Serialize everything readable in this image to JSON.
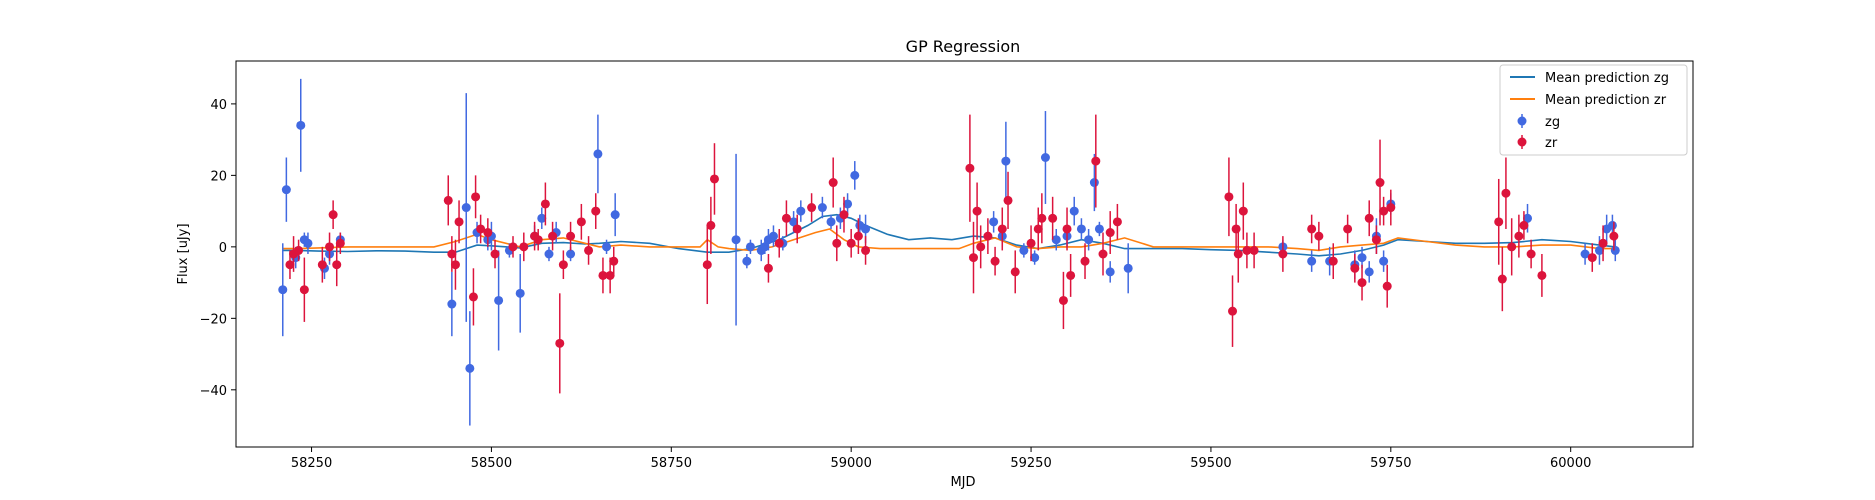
{
  "chart_data": {
    "type": "scatter",
    "title": "GP Regression",
    "xlabel": "MJD",
    "ylabel": "Flux [uJy]",
    "xlim": [
      58145,
      60170
    ],
    "ylim": [
      -56,
      52
    ],
    "xticks": [
      58250,
      58500,
      58750,
      59000,
      59250,
      59500,
      59750,
      60000
    ],
    "yticks": [
      -40,
      -20,
      0,
      20,
      40
    ],
    "legend_position": "top-right",
    "colors": {
      "mean_zg": "#1f77b4",
      "mean_zr": "#ff7f0e",
      "points_zg": "#4169e1",
      "points_zr": "#dc143c"
    },
    "lines": [
      {
        "name": "Mean prediction zg",
        "color": "#1f77b4",
        "x": [
          58210,
          58230,
          58260,
          58300,
          58340,
          58380,
          58420,
          58450,
          58480,
          58500,
          58540,
          58570,
          58600,
          58630,
          58650,
          58680,
          58720,
          58760,
          58800,
          58830,
          58860,
          58900,
          58940,
          58960,
          58980,
          59000,
          59020,
          59050,
          59080,
          59110,
          59140,
          59170,
          59200,
          59230,
          59260,
          59290,
          59320,
          59350,
          59380,
          59420,
          59460,
          59500,
          59540,
          59580,
          59620,
          59650,
          59680,
          59710,
          59740,
          59760,
          59800,
          59840,
          59880,
          59920,
          59960,
          60000,
          60040,
          60062
        ],
        "y": [
          -1,
          -1,
          -1.2,
          -1.3,
          -1.1,
          -1.2,
          -1.5,
          -1.5,
          0.5,
          0.3,
          -0.3,
          1.0,
          1.2,
          0.8,
          1.0,
          1.5,
          1.0,
          -0.5,
          -1.5,
          -1.5,
          -0.5,
          2.0,
          6.0,
          8.5,
          9.0,
          8.0,
          6.0,
          3.5,
          2.0,
          2.5,
          2.0,
          3.0,
          2.5,
          0.5,
          -0.5,
          0.5,
          2.0,
          1.0,
          -0.5,
          -0.5,
          -0.5,
          -0.8,
          -1.0,
          -1.5,
          -2.0,
          -2.5,
          -2.0,
          -1.0,
          0.5,
          2.0,
          1.5,
          1.0,
          1.0,
          1.2,
          2.0,
          1.5,
          0.5,
          0
        ]
      },
      {
        "name": "Mean prediction zr",
        "color": "#ff7f0e",
        "x": [
          58210,
          58230,
          58260,
          58300,
          58340,
          58380,
          58420,
          58450,
          58480,
          58500,
          58540,
          58570,
          58600,
          58630,
          58650,
          58680,
          58720,
          58760,
          58790,
          58800,
          58815,
          58830,
          58860,
          58890,
          58920,
          58950,
          58970,
          58990,
          59010,
          59040,
          59080,
          59110,
          59150,
          59170,
          59200,
          59230,
          59260,
          59290,
          59320,
          59350,
          59380,
          59420,
          59460,
          59500,
          59540,
          59580,
          59620,
          59650,
          59680,
          59710,
          59740,
          59760,
          59800,
          59840,
          59880,
          59920,
          59960,
          60000,
          60040,
          60062
        ],
        "y": [
          -0.5,
          -0.5,
          -0.3,
          0,
          0,
          0,
          0,
          1.5,
          3.5,
          2.0,
          0,
          2.0,
          2.5,
          1.0,
          0,
          0.5,
          0,
          0,
          0,
          2.0,
          0,
          -0.5,
          -1.0,
          0,
          2.0,
          4.0,
          5.0,
          2.0,
          0,
          -0.5,
          -0.5,
          -0.5,
          -0.5,
          1.0,
          2.5,
          0,
          -0.5,
          0,
          0,
          1.0,
          2.5,
          0,
          0,
          0,
          0,
          0,
          -0.5,
          -1.0,
          0,
          0.5,
          1.0,
          2.5,
          1.5,
          0.5,
          0,
          0,
          0.5,
          0.5,
          -0.5,
          -0.5
        ]
      }
    ],
    "series": [
      {
        "name": "zg",
        "color": "#4169e1",
        "points": [
          [
            58210,
            -12,
            13
          ],
          [
            58215,
            16,
            9
          ],
          [
            58228,
            -3,
            3
          ],
          [
            58235,
            34,
            13
          ],
          [
            58240,
            2,
            2
          ],
          [
            58245,
            1,
            3
          ],
          [
            58268,
            -6,
            3
          ],
          [
            58275,
            -2,
            3
          ],
          [
            58290,
            2,
            2
          ],
          [
            58445,
            -16,
            9
          ],
          [
            58465,
            11,
            32
          ],
          [
            58470,
            -34,
            16
          ],
          [
            58480,
            4,
            3
          ],
          [
            58495,
            2,
            3
          ],
          [
            58500,
            3,
            4
          ],
          [
            58510,
            -15,
            14
          ],
          [
            58525,
            -1,
            2
          ],
          [
            58540,
            -13,
            11
          ],
          [
            58560,
            3,
            3
          ],
          [
            58570,
            8,
            3
          ],
          [
            58580,
            -2,
            2
          ],
          [
            58590,
            4,
            3
          ],
          [
            58610,
            -2,
            2
          ],
          [
            58648,
            26,
            11
          ],
          [
            58660,
            0,
            2
          ],
          [
            58672,
            9,
            6
          ],
          [
            58840,
            2,
            24
          ],
          [
            58855,
            -4,
            2
          ],
          [
            58860,
            0,
            2
          ],
          [
            58875,
            -1,
            3
          ],
          [
            58880,
            0,
            2
          ],
          [
            58885,
            2,
            3
          ],
          [
            58892,
            3,
            3
          ],
          [
            58905,
            1,
            2
          ],
          [
            58920,
            7,
            3
          ],
          [
            58930,
            10,
            3
          ],
          [
            58960,
            11,
            3
          ],
          [
            58972,
            7,
            2
          ],
          [
            58985,
            8,
            3
          ],
          [
            58995,
            12,
            3
          ],
          [
            59005,
            20,
            4
          ],
          [
            59012,
            6,
            3
          ],
          [
            59020,
            5,
            4
          ],
          [
            59198,
            7,
            3
          ],
          [
            59210,
            3,
            3
          ],
          [
            59215,
            24,
            11
          ],
          [
            59240,
            -1,
            2
          ],
          [
            59255,
            -3,
            2
          ],
          [
            59270,
            25,
            13
          ],
          [
            59285,
            2,
            3
          ],
          [
            59300,
            3,
            3
          ],
          [
            59310,
            10,
            4
          ],
          [
            59320,
            5,
            3
          ],
          [
            59330,
            2,
            3
          ],
          [
            59338,
            18,
            8
          ],
          [
            59345,
            5,
            2
          ],
          [
            59360,
            -7,
            3
          ],
          [
            59385,
            -6,
            7
          ],
          [
            59600,
            0,
            2
          ],
          [
            59640,
            -4,
            3
          ],
          [
            59665,
            -4,
            4
          ],
          [
            59700,
            -5,
            4
          ],
          [
            59710,
            -3,
            3
          ],
          [
            59720,
            -7,
            3
          ],
          [
            59730,
            3,
            5
          ],
          [
            59740,
            -4,
            3
          ],
          [
            59750,
            12,
            3
          ],
          [
            59940,
            8,
            4
          ],
          [
            60020,
            -2,
            3
          ],
          [
            60040,
            -1,
            4
          ],
          [
            60050,
            5,
            4
          ],
          [
            60058,
            6,
            3
          ],
          [
            60062,
            -1,
            3
          ]
        ]
      },
      {
        "name": "zr",
        "color": "#dc143c",
        "points": [
          [
            58220,
            -5,
            4
          ],
          [
            58225,
            -2,
            5
          ],
          [
            58232,
            -1,
            3
          ],
          [
            58240,
            -12,
            9
          ],
          [
            58265,
            -5,
            5
          ],
          [
            58275,
            0,
            4
          ],
          [
            58280,
            9,
            4
          ],
          [
            58285,
            -5,
            6
          ],
          [
            58290,
            1,
            3
          ],
          [
            58440,
            13,
            7
          ],
          [
            58445,
            -2,
            5
          ],
          [
            58450,
            -5,
            7
          ],
          [
            58455,
            7,
            6
          ],
          [
            58475,
            -14,
            8
          ],
          [
            58478,
            14,
            6
          ],
          [
            58485,
            5,
            4
          ],
          [
            58495,
            4,
            4
          ],
          [
            58505,
            -2,
            4
          ],
          [
            58530,
            0,
            3
          ],
          [
            58545,
            0,
            4
          ],
          [
            58560,
            3,
            4
          ],
          [
            58565,
            2,
            3
          ],
          [
            58575,
            12,
            6
          ],
          [
            58585,
            3,
            4
          ],
          [
            58595,
            -27,
            14
          ],
          [
            58600,
            -5,
            4
          ],
          [
            58610,
            3,
            4
          ],
          [
            58625,
            7,
            5
          ],
          [
            58635,
            -1,
            4
          ],
          [
            58645,
            10,
            5
          ],
          [
            58655,
            -8,
            5
          ],
          [
            58665,
            -8,
            5
          ],
          [
            58670,
            -4,
            4
          ],
          [
            58800,
            -5,
            11
          ],
          [
            58805,
            6,
            8
          ],
          [
            58810,
            19,
            10
          ],
          [
            58885,
            -6,
            4
          ],
          [
            58900,
            1,
            4
          ],
          [
            58910,
            8,
            5
          ],
          [
            58925,
            5,
            4
          ],
          [
            58945,
            11,
            4
          ],
          [
            58975,
            18,
            7
          ],
          [
            58980,
            1,
            5
          ],
          [
            58990,
            9,
            5
          ],
          [
            59000,
            1,
            4
          ],
          [
            59010,
            3,
            5
          ],
          [
            59020,
            -1,
            4
          ],
          [
            59165,
            22,
            15
          ],
          [
            59170,
            -3,
            10
          ],
          [
            59175,
            10,
            8
          ],
          [
            59180,
            0,
            6
          ],
          [
            59190,
            3,
            5
          ],
          [
            59200,
            -4,
            4
          ],
          [
            59210,
            5,
            6
          ],
          [
            59218,
            13,
            8
          ],
          [
            59228,
            -7,
            6
          ],
          [
            59250,
            1,
            5
          ],
          [
            59260,
            5,
            6
          ],
          [
            59265,
            8,
            7
          ],
          [
            59280,
            8,
            6
          ],
          [
            59295,
            -15,
            8
          ],
          [
            59300,
            5,
            6
          ],
          [
            59305,
            -8,
            6
          ],
          [
            59325,
            -4,
            5
          ],
          [
            59340,
            24,
            13
          ],
          [
            59350,
            -2,
            6
          ],
          [
            59360,
            4,
            6
          ],
          [
            59370,
            7,
            5
          ],
          [
            59525,
            14,
            11
          ],
          [
            59530,
            -18,
            10
          ],
          [
            59535,
            5,
            7
          ],
          [
            59538,
            -2,
            8
          ],
          [
            59545,
            10,
            8
          ],
          [
            59550,
            -1,
            5
          ],
          [
            59560,
            -1,
            5
          ],
          [
            59600,
            -2,
            5
          ],
          [
            59640,
            5,
            4
          ],
          [
            59650,
            3,
            4
          ],
          [
            59670,
            -4,
            5
          ],
          [
            59690,
            5,
            4
          ],
          [
            59700,
            -6,
            4
          ],
          [
            59710,
            -10,
            5
          ],
          [
            59720,
            8,
            5
          ],
          [
            59730,
            2,
            4
          ],
          [
            59735,
            18,
            12
          ],
          [
            59740,
            10,
            4
          ],
          [
            59745,
            -11,
            6
          ],
          [
            59750,
            11,
            5
          ],
          [
            59900,
            7,
            12
          ],
          [
            59905,
            -9,
            9
          ],
          [
            59910,
            15,
            10
          ],
          [
            59918,
            0,
            8
          ],
          [
            59928,
            3,
            6
          ],
          [
            59935,
            6,
            4
          ],
          [
            59945,
            -2,
            4
          ],
          [
            59960,
            -8,
            6
          ],
          [
            60030,
            -3,
            4
          ],
          [
            60045,
            1,
            5
          ],
          [
            60060,
            3,
            4
          ]
        ]
      }
    ]
  }
}
